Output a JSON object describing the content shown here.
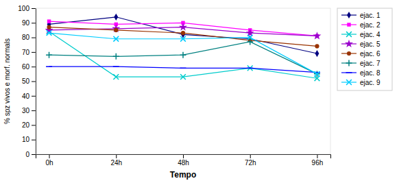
{
  "chart_data": {
    "type": "line",
    "xlabel": "Tempo",
    "ylabel": "% spz vivos e morf. normals",
    "categories": [
      "0h",
      "24h",
      "48h",
      "72h",
      "96h"
    ],
    "series": [
      {
        "name": "ejac. 1",
        "color": "#000080",
        "marker": "diamond",
        "values": [
          89,
          94,
          82,
          79,
          69
        ]
      },
      {
        "name": "ejac. 2",
        "color": "#FF00FF",
        "marker": "square",
        "values": [
          91,
          89,
          90,
          85,
          81
        ]
      },
      {
        "name": "ejac. 4",
        "color": "#00CCCC",
        "marker": "x",
        "values": [
          84,
          53,
          53,
          59,
          52
        ]
      },
      {
        "name": "ejac. 5",
        "color": "#9900CC",
        "marker": "star",
        "values": [
          85,
          86,
          87,
          83,
          81
        ]
      },
      {
        "name": "ejac. 6",
        "color": "#993300",
        "marker": "circle",
        "values": [
          87,
          85,
          83,
          78,
          74
        ]
      },
      {
        "name": "ejac. 7",
        "color": "#008080",
        "marker": "plus",
        "values": [
          68,
          67,
          68,
          77,
          55
        ]
      },
      {
        "name": "ejac. 8",
        "color": "#0000FF",
        "marker": "hline",
        "values": [
          60,
          60,
          59,
          59,
          56
        ]
      },
      {
        "name": "ejac. 9",
        "color": "#00CCFF",
        "marker": "x",
        "values": [
          83,
          79,
          79,
          80,
          55
        ]
      }
    ],
    "ylim": [
      0,
      100
    ],
    "yticks": [
      0,
      10,
      20,
      30,
      40,
      50,
      60,
      70,
      80,
      90,
      100
    ],
    "grid": false,
    "legend": "right"
  }
}
